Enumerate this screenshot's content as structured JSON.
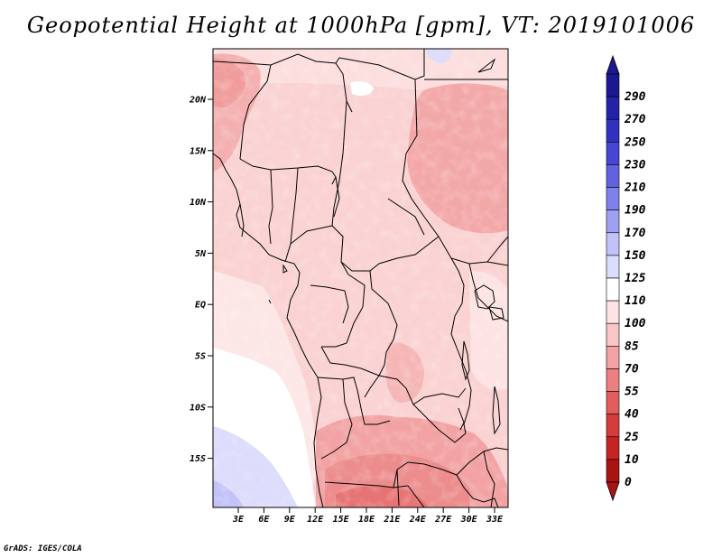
{
  "title": "Geopotential Height at 1000hPa [gpm], VT: 2019101006",
  "credit": "GrADS: IGES/COLA",
  "lat_ticks": [
    "20N",
    "15N",
    "10N",
    "5N",
    "EQ",
    "5S",
    "10S",
    "15S"
  ],
  "lon_ticks": [
    "3E",
    "6E",
    "9E",
    "12E",
    "15E",
    "18E",
    "21E",
    "24E",
    "27E",
    "30E",
    "33E"
  ],
  "colorbar": {
    "levels": [
      {
        "label": "290",
        "color": "#1b1890"
      },
      {
        "label": "270",
        "color": "#2423a8"
      },
      {
        "label": "250",
        "color": "#3131be"
      },
      {
        "label": "230",
        "color": "#4646d2"
      },
      {
        "label": "210",
        "color": "#6262e0"
      },
      {
        "label": "190",
        "color": "#8080ea"
      },
      {
        "label": "170",
        "color": "#a0a0f2"
      },
      {
        "label": "150",
        "color": "#c2c2f8"
      },
      {
        "label": "125",
        "color": "#dcdcfc"
      },
      {
        "label": "110",
        "color": "#ffffff"
      },
      {
        "label": "100",
        "color": "#fde3e3"
      },
      {
        "label": "85",
        "color": "#f9c6c6"
      },
      {
        "label": "70",
        "color": "#f3a3a3"
      },
      {
        "label": "55",
        "color": "#ec8080"
      },
      {
        "label": "40",
        "color": "#e25e5e"
      },
      {
        "label": "25",
        "color": "#d53d3d"
      },
      {
        "label": "10",
        "color": "#c42424"
      },
      {
        "label": "0",
        "color": "#a81414"
      }
    ]
  }
}
